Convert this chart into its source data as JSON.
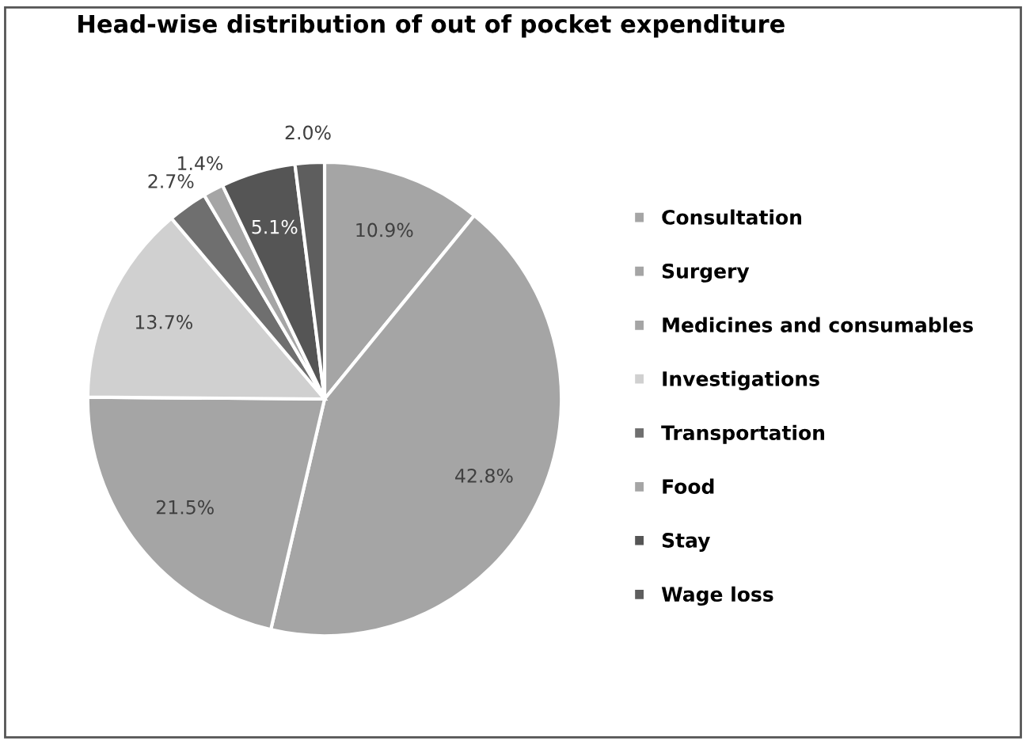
{
  "chart_data": {
    "type": "pie",
    "title": "Head-wise distribution of out of pocket expenditure",
    "categories": [
      "Consultation",
      "Surgery",
      "Medicines and consumables",
      "Investigations",
      "Transportation",
      "Food",
      "Stay",
      "Wage loss"
    ],
    "values": [
      10.9,
      42.8,
      21.5,
      13.7,
      2.7,
      1.4,
      5.1,
      2.0
    ],
    "value_labels": [
      "10.9%",
      "42.8%",
      "21.5%",
      "13.7%",
      "2.7%",
      "1.4%",
      "5.1%",
      "2.0%"
    ],
    "colors": [
      "#a5a5a5",
      "#a5a5a5",
      "#a5a5a5",
      "#d0d0d0",
      "#6f6f6f",
      "#a5a5a5",
      "#555555",
      "#5e5e5e"
    ],
    "legend": "right"
  }
}
